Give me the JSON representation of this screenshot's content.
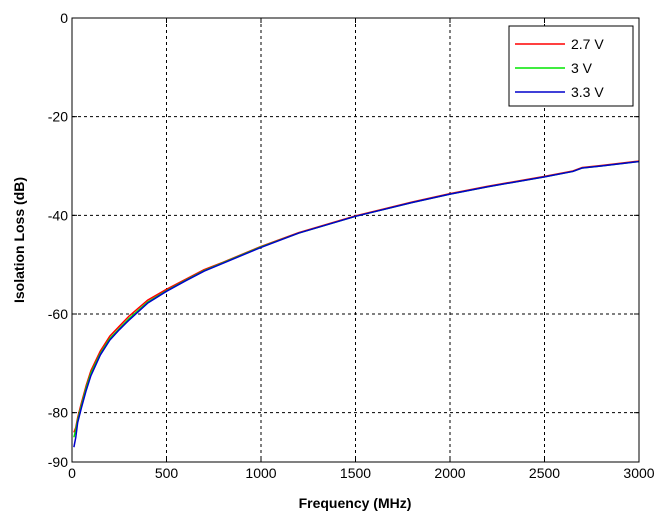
{
  "chart_data": {
    "type": "line",
    "title": "",
    "xlabel": "Frequency (MHz)",
    "ylabel": "Isolation Loss (dB)",
    "xlim": [
      0,
      3000
    ],
    "ylim": [
      -90,
      0
    ],
    "x_ticks": [
      0,
      500,
      1000,
      1500,
      2000,
      2500,
      3000
    ],
    "y_ticks": [
      0,
      -20,
      -40,
      -60,
      -80,
      -90
    ],
    "x_tick_labels": [
      "0",
      "500",
      "1000",
      "1500",
      "2000",
      "2500",
      "3000"
    ],
    "y_tick_labels": [
      "0",
      "-20",
      "-40",
      "-60",
      "-80",
      "-90"
    ],
    "grid": true,
    "grid_style": "dotted",
    "legend_position": "top-right",
    "series": [
      {
        "name": "2.7 V",
        "color": "#ff0000",
        "x": [
          10,
          20,
          30,
          50,
          75,
          100,
          150,
          200,
          250,
          300,
          400,
          500,
          600,
          700,
          800,
          1000,
          1200,
          1500,
          1800,
          2000,
          2200,
          2500,
          2650,
          2700,
          2800,
          3000
        ],
        "y": [
          -84,
          -83,
          -81,
          -78,
          -74.5,
          -71.5,
          -67.5,
          -64.5,
          -62.5,
          -60.5,
          -57.2,
          -55,
          -53,
          -51,
          -49.5,
          -46.3,
          -43.5,
          -40.1,
          -37.3,
          -35.6,
          -34.1,
          -32.1,
          -31,
          -30.3,
          -29.9,
          -29
        ]
      },
      {
        "name": "3 V",
        "color": "#00e600",
        "x": [
          10,
          20,
          30,
          50,
          75,
          100,
          150,
          200,
          250,
          300,
          400,
          500,
          600,
          700,
          800,
          1000,
          1200,
          1500,
          1800,
          2000,
          2200,
          2500,
          2650,
          2700,
          2800,
          3000
        ],
        "y": [
          -85,
          -83.5,
          -81.5,
          -78.5,
          -75,
          -72,
          -68,
          -65,
          -63,
          -61,
          -57.6,
          -55.3,
          -53.2,
          -51.2,
          -49.6,
          -46.4,
          -43.6,
          -40.2,
          -37.4,
          -35.7,
          -34.2,
          -32.2,
          -31.1,
          -30.4,
          -30,
          -29.1
        ]
      },
      {
        "name": "3.3 V",
        "color": "#0000cc",
        "x": [
          10,
          20,
          30,
          50,
          75,
          100,
          150,
          200,
          250,
          300,
          400,
          500,
          600,
          700,
          800,
          1000,
          1200,
          1500,
          1800,
          2000,
          2200,
          2500,
          2650,
          2700,
          2800,
          3000
        ],
        "y": [
          -87,
          -85,
          -82,
          -79,
          -75.5,
          -72.5,
          -68.3,
          -65.3,
          -63.2,
          -61.3,
          -57.8,
          -55.4,
          -53.3,
          -51.3,
          -49.7,
          -46.5,
          -43.6,
          -40.2,
          -37.4,
          -35.7,
          -34.2,
          -32.2,
          -31.1,
          -30.4,
          -30,
          -29.1
        ]
      }
    ]
  }
}
